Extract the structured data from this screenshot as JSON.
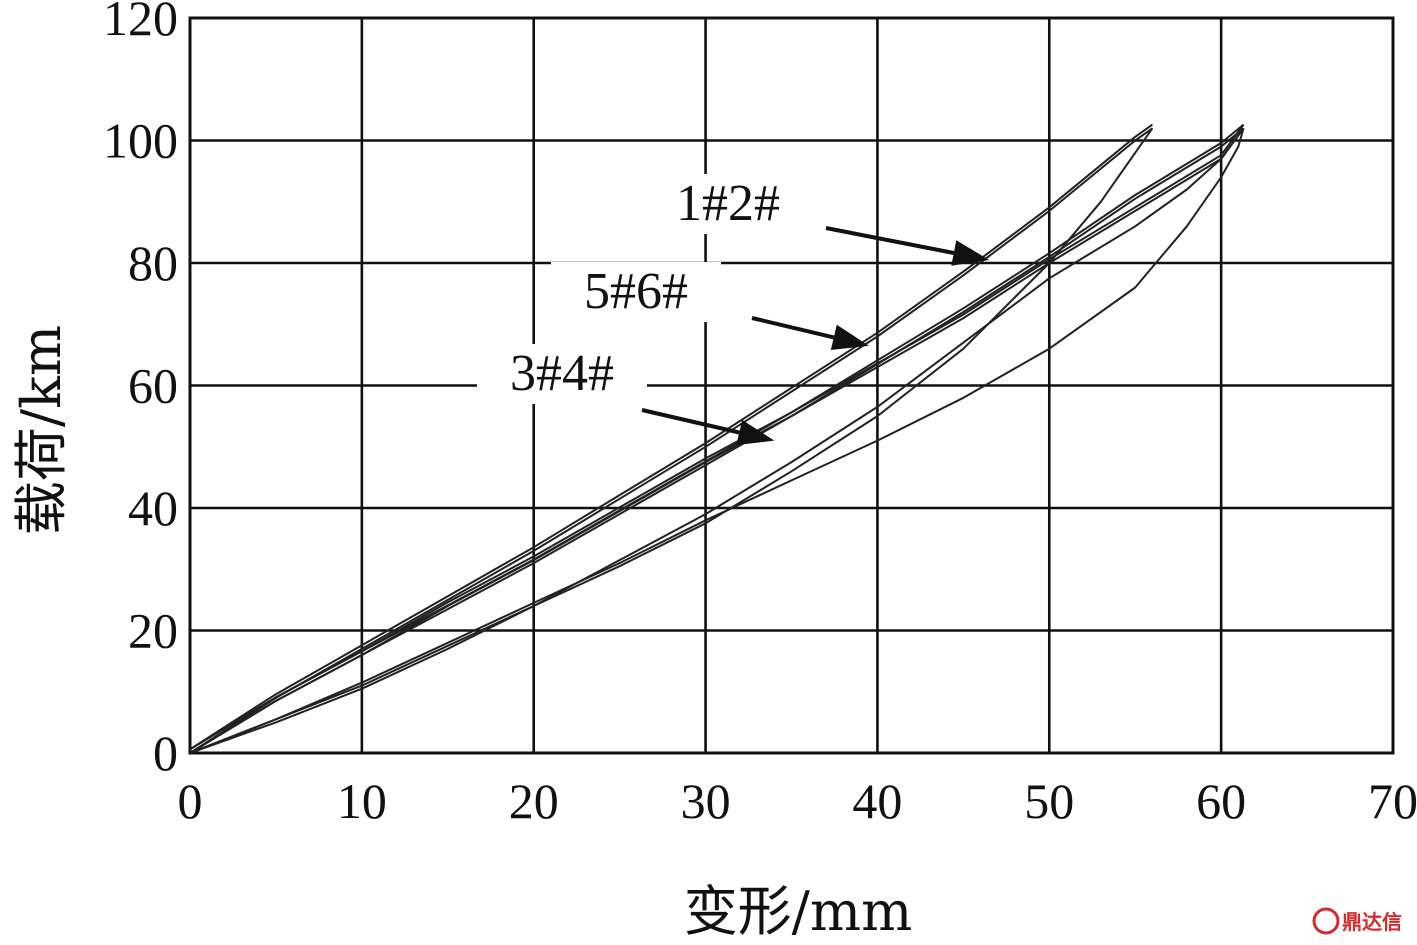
{
  "chart_data": {
    "type": "line",
    "title": "",
    "xlabel": "变形/mm",
    "ylabel": "载荷/km",
    "xlim": [
      0,
      70
    ],
    "ylim": [
      0,
      120
    ],
    "x_ticks": [
      "0",
      "10",
      "20",
      "30",
      "40",
      "50",
      "60",
      "70"
    ],
    "y_ticks": [
      "0",
      "20",
      "40",
      "60",
      "80",
      "100",
      "120"
    ],
    "grid": true,
    "series": [
      {
        "name": "1#2#",
        "loading": [
          [
            0,
            0
          ],
          [
            5,
            9
          ],
          [
            10,
            17
          ],
          [
            15,
            25
          ],
          [
            20,
            33
          ],
          [
            25,
            41.5
          ],
          [
            30,
            50
          ],
          [
            35,
            59
          ],
          [
            40,
            68
          ],
          [
            45,
            78
          ],
          [
            50,
            88.5
          ],
          [
            55,
            100
          ],
          [
            56,
            102
          ]
        ],
        "unloading": [
          [
            56,
            102
          ],
          [
            55,
            98
          ],
          [
            53,
            90
          ],
          [
            50,
            80
          ],
          [
            45,
            66
          ],
          [
            40,
            55
          ],
          [
            35,
            46
          ],
          [
            30,
            37.5
          ],
          [
            25,
            30.5
          ],
          [
            20,
            24
          ],
          [
            15,
            17.5
          ],
          [
            10,
            11
          ],
          [
            5,
            5.5
          ],
          [
            0,
            0
          ]
        ]
      },
      {
        "name": "5#6#",
        "loading": [
          [
            0,
            0
          ],
          [
            5,
            8.5
          ],
          [
            10,
            16
          ],
          [
            15,
            24
          ],
          [
            20,
            31.5
          ],
          [
            25,
            39.5
          ],
          [
            30,
            47.5
          ],
          [
            35,
            55
          ],
          [
            40,
            63
          ],
          [
            45,
            71
          ],
          [
            50,
            80
          ],
          [
            55,
            88.5
          ],
          [
            60,
            97
          ],
          [
            61.3,
            102
          ]
        ],
        "unloading": [
          [
            61.3,
            102
          ],
          [
            60,
            97
          ],
          [
            58,
            92
          ],
          [
            55,
            86
          ],
          [
            50,
            77.5
          ],
          [
            45,
            67
          ],
          [
            40,
            56.5
          ],
          [
            35,
            47.5
          ],
          [
            30,
            39
          ],
          [
            25,
            31.5
          ],
          [
            20,
            24
          ],
          [
            15,
            17
          ],
          [
            10,
            10.5
          ],
          [
            5,
            5
          ],
          [
            0,
            0
          ]
        ]
      },
      {
        "name": "3#4#",
        "loading": [
          [
            0,
            0
          ],
          [
            5,
            8.5
          ],
          [
            10,
            16
          ],
          [
            15,
            23.5
          ],
          [
            20,
            31
          ],
          [
            25,
            39
          ],
          [
            30,
            47
          ],
          [
            35,
            55
          ],
          [
            40,
            63.5
          ],
          [
            45,
            72
          ],
          [
            50,
            81
          ],
          [
            55,
            90.5
          ],
          [
            60,
            99
          ],
          [
            61.3,
            102
          ]
        ],
        "unloading": [
          [
            61.3,
            102
          ],
          [
            61,
            99
          ],
          [
            60,
            94
          ],
          [
            58,
            86
          ],
          [
            55,
            76
          ],
          [
            50,
            66
          ],
          [
            45,
            58
          ],
          [
            40,
            51
          ],
          [
            35,
            44.5
          ],
          [
            30,
            38
          ],
          [
            25,
            31
          ],
          [
            20,
            24.5
          ],
          [
            15,
            18
          ],
          [
            10,
            11.5
          ],
          [
            5,
            5.5
          ],
          [
            0,
            0
          ]
        ]
      }
    ],
    "annotations": [
      {
        "text": "1#2#",
        "points_to": [
          46.5,
          80.5
        ]
      },
      {
        "text": "5#6#",
        "points_to": [
          39.5,
          66.5
        ]
      },
      {
        "text": "3#4#",
        "points_to": [
          34,
          51
        ]
      }
    ]
  },
  "watermark": {
    "text": "鼎达信",
    "color": "#d42a2a"
  }
}
